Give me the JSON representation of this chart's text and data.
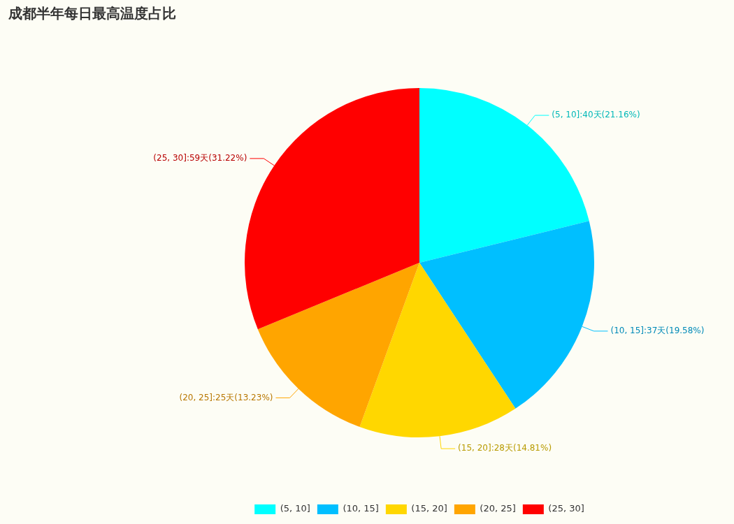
{
  "chart_data": {
    "type": "pie",
    "title": "成都半年每日最高温度占比",
    "categories": [
      "(5, 10]",
      "(10, 15]",
      "(15, 20]",
      "(20, 25]",
      "(25, 30]"
    ],
    "values": [
      40,
      37,
      28,
      25,
      59
    ],
    "value_labels": [
      "(5, 10]:40天(21.16%)",
      "(10, 15]:37天(19.58%)",
      "(15, 20]:28天(14.81%)",
      "(20, 25]:25天(13.23%)",
      "(25, 30]:59天(31.22%)"
    ],
    "colors": [
      "#00ffff",
      "#00bfff",
      "#ffd700",
      "#ffa500",
      "#ff0000"
    ],
    "legend": "bottom"
  }
}
